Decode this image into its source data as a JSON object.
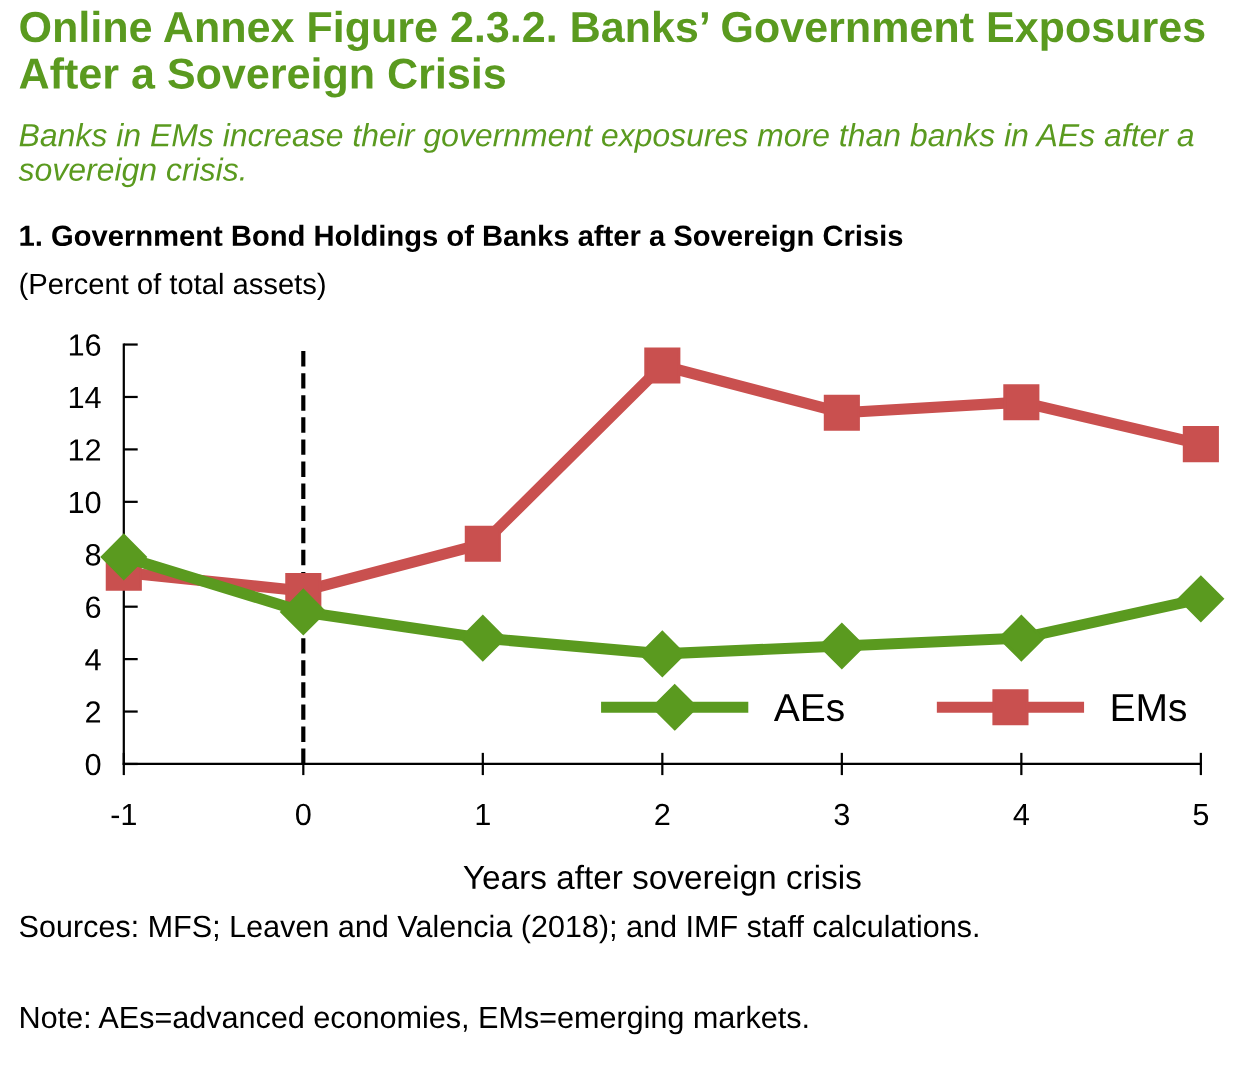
{
  "chart_data": {
    "type": "line",
    "title": "Online Annex Figure 2.3.2. Banks’ Government Exposures After a Sovereign Crisis",
    "subtitle": "Banks in EMs increase their government exposures more than banks in AEs after a sovereign crisis.",
    "annotations": [
      "1. Government Bond Holdings of Banks after a Sovereign Crisis",
      "Sources: MFS; Leaven and Valencia (2018); and IMF staff calculations.",
      "Note: AEs=advanced economies, EMs=emerging markets."
    ],
    "ylabel": "(Percent of total assets)",
    "xlabel": "Years after sovereign crisis",
    "x": [
      -1,
      0,
      1,
      2,
      3,
      4,
      5
    ],
    "series": [
      {
        "name": "AEs",
        "color": "#5a9a1f",
        "marker": "diamond",
        "values": [
          7.9,
          5.8,
          4.8,
          4.2,
          4.5,
          4.8,
          6.3
        ]
      },
      {
        "name": "EMs",
        "color": "#c9504f",
        "marker": "square",
        "values": [
          7.3,
          6.6,
          8.4,
          15.2,
          13.4,
          13.8,
          12.2
        ]
      }
    ],
    "xlim": [
      -1,
      5
    ],
    "xticks": [
      -1,
      0,
      1,
      2,
      3,
      4,
      5
    ],
    "ylim": [
      0,
      16
    ],
    "yticks": [
      0,
      2,
      4,
      6,
      8,
      10,
      12,
      14,
      16
    ],
    "ref_lines": [
      {
        "axis": "x",
        "value": 0,
        "color": "#000000",
        "line_style": "dashed"
      }
    ],
    "grid": false,
    "legend": "bottom right",
    "line_style": "solid"
  }
}
